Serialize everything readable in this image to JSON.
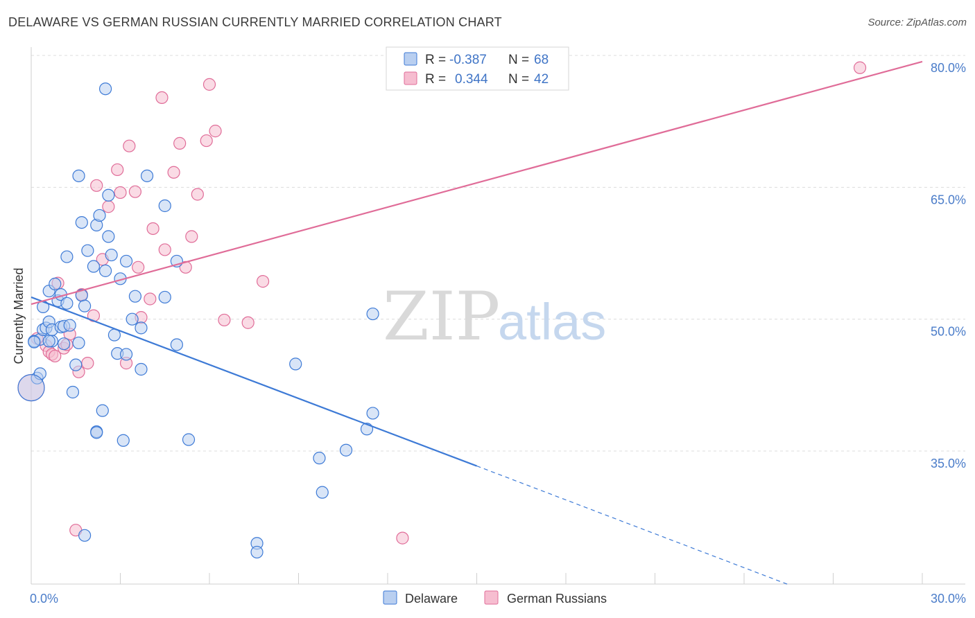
{
  "title": "DELAWARE VS GERMAN RUSSIAN CURRENTLY MARRIED CORRELATION CHART",
  "source": "Source: ZipAtlas.com",
  "watermark": {
    "zip": "ZIP",
    "atlas": "atlas"
  },
  "colors": {
    "blue": "#3d7ad6",
    "blue_fill": "#b9cff0",
    "pink": "#e06c98",
    "pink_fill": "#f6bdd0",
    "grid": "#dcdcdc"
  },
  "legend": {
    "r_label": "R =",
    "n_label": "N =",
    "rows": [
      {
        "r": "-0.387",
        "n": "68"
      },
      {
        "r": "0.344",
        "n": "42"
      }
    ]
  },
  "chart_data": {
    "type": "scatter",
    "title": "DELAWARE VS GERMAN RUSSIAN CURRENTLY MARRIED CORRELATION CHART",
    "xlabel": "",
    "ylabel": "Currently Married",
    "xlim": [
      0,
      30
    ],
    "ylim": [
      20,
      81
    ],
    "x_tick_labels": [
      "0.0%",
      "30.0%"
    ],
    "y_ticks": [
      35,
      50,
      65,
      80
    ],
    "y_tick_labels": [
      "35.0%",
      "50.0%",
      "65.0%",
      "80.0%"
    ],
    "grid": true,
    "legend_position": "top-center",
    "series": [
      {
        "name": "Delaware",
        "r": -0.387,
        "n": 68,
        "trend": {
          "x0": 0,
          "y0": 52.5,
          "x1": 15.0,
          "y1": 33.3,
          "dash_to_x": 25.5,
          "dash_to_y": 19.8
        },
        "points": [
          [
            0.1,
            47.5
          ],
          [
            0.2,
            43.3
          ],
          [
            0.3,
            43.8
          ],
          [
            0.3,
            47.7
          ],
          [
            0.4,
            48.8
          ],
          [
            0.4,
            51.4
          ],
          [
            0.5,
            49.0
          ],
          [
            0.6,
            49.7
          ],
          [
            0.6,
            53.2
          ],
          [
            0.7,
            47.5
          ],
          [
            0.7,
            48.8
          ],
          [
            0.8,
            54.0
          ],
          [
            0.9,
            52.1
          ],
          [
            1.0,
            52.8
          ],
          [
            1.0,
            49.1
          ],
          [
            1.1,
            47.2
          ],
          [
            1.1,
            49.2
          ],
          [
            1.2,
            51.8
          ],
          [
            1.2,
            57.1
          ],
          [
            1.3,
            49.3
          ],
          [
            1.4,
            41.7
          ],
          [
            1.5,
            44.8
          ],
          [
            1.6,
            47.3
          ],
          [
            1.6,
            66.3
          ],
          [
            1.7,
            52.7
          ],
          [
            1.7,
            61.0
          ],
          [
            1.8,
            51.5
          ],
          [
            1.8,
            25.4
          ],
          [
            1.9,
            57.8
          ],
          [
            2.1,
            56.0
          ],
          [
            2.2,
            37.2
          ],
          [
            2.2,
            37.1
          ],
          [
            2.2,
            60.7
          ],
          [
            2.3,
            61.8
          ],
          [
            2.4,
            39.6
          ],
          [
            2.5,
            55.5
          ],
          [
            2.5,
            76.2
          ],
          [
            2.6,
            64.1
          ],
          [
            2.6,
            59.4
          ],
          [
            2.7,
            57.3
          ],
          [
            2.8,
            48.2
          ],
          [
            2.9,
            46.1
          ],
          [
            3.0,
            54.6
          ],
          [
            3.1,
            36.2
          ],
          [
            3.2,
            46.0
          ],
          [
            3.2,
            56.6
          ],
          [
            3.4,
            50.0
          ],
          [
            3.5,
            52.6
          ],
          [
            3.7,
            49.0
          ],
          [
            3.7,
            44.3
          ],
          [
            3.9,
            66.3
          ],
          [
            4.5,
            52.5
          ],
          [
            4.5,
            62.9
          ],
          [
            4.9,
            56.6
          ],
          [
            4.9,
            47.1
          ],
          [
            5.3,
            36.3
          ],
          [
            7.6,
            24.5
          ],
          [
            7.6,
            23.5
          ],
          [
            8.9,
            44.9
          ],
          [
            9.7,
            34.2
          ],
          [
            9.8,
            30.3
          ],
          [
            10.6,
            35.1
          ],
          [
            11.3,
            37.5
          ],
          [
            11.5,
            39.3
          ],
          [
            11.5,
            50.6
          ],
          [
            0.0,
            42.2
          ],
          [
            0.1,
            47.4
          ],
          [
            0.6,
            47.5
          ]
        ]
      },
      {
        "name": "German Russians",
        "r": 0.344,
        "n": 42,
        "trend": {
          "x0": 0,
          "y0": 51.7,
          "x1": 30.0,
          "y1": 79.3
        },
        "points": [
          [
            0.0,
            42.2
          ],
          [
            0.2,
            47.8
          ],
          [
            0.5,
            47.0
          ],
          [
            0.6,
            46.3
          ],
          [
            0.7,
            46.0
          ],
          [
            0.8,
            45.8
          ],
          [
            0.9,
            54.1
          ],
          [
            1.1,
            46.7
          ],
          [
            1.2,
            47.1
          ],
          [
            1.3,
            48.3
          ],
          [
            1.5,
            26.0
          ],
          [
            1.6,
            44.0
          ],
          [
            1.7,
            52.8
          ],
          [
            1.9,
            45.0
          ],
          [
            2.1,
            50.4
          ],
          [
            2.2,
            65.2
          ],
          [
            2.4,
            56.8
          ],
          [
            2.6,
            62.8
          ],
          [
            2.9,
            67.0
          ],
          [
            3.0,
            64.4
          ],
          [
            3.2,
            45.0
          ],
          [
            3.3,
            69.7
          ],
          [
            3.5,
            64.5
          ],
          [
            3.6,
            55.9
          ],
          [
            3.7,
            50.2
          ],
          [
            4.0,
            52.3
          ],
          [
            4.1,
            60.3
          ],
          [
            4.4,
            75.2
          ],
          [
            4.5,
            57.9
          ],
          [
            4.8,
            66.7
          ],
          [
            5.0,
            70.0
          ],
          [
            5.2,
            55.9
          ],
          [
            5.4,
            59.4
          ],
          [
            5.6,
            64.2
          ],
          [
            5.9,
            70.3
          ],
          [
            6.0,
            76.7
          ],
          [
            6.2,
            71.4
          ],
          [
            6.5,
            49.9
          ],
          [
            7.3,
            49.6
          ],
          [
            7.8,
            54.3
          ],
          [
            12.5,
            25.1
          ],
          [
            27.9,
            78.6
          ]
        ]
      }
    ]
  }
}
